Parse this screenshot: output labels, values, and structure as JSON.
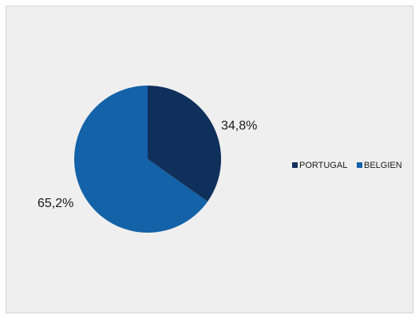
{
  "chart_data": {
    "type": "pie",
    "categories": [
      "PORTUGAL",
      "BELGIEN"
    ],
    "values": [
      34.8,
      65.2
    ],
    "data_labels": [
      "34,8%",
      "65,2%"
    ],
    "colors": [
      "#10305c",
      "#1462a8"
    ],
    "legend_position": "right",
    "background": "#efefef"
  }
}
